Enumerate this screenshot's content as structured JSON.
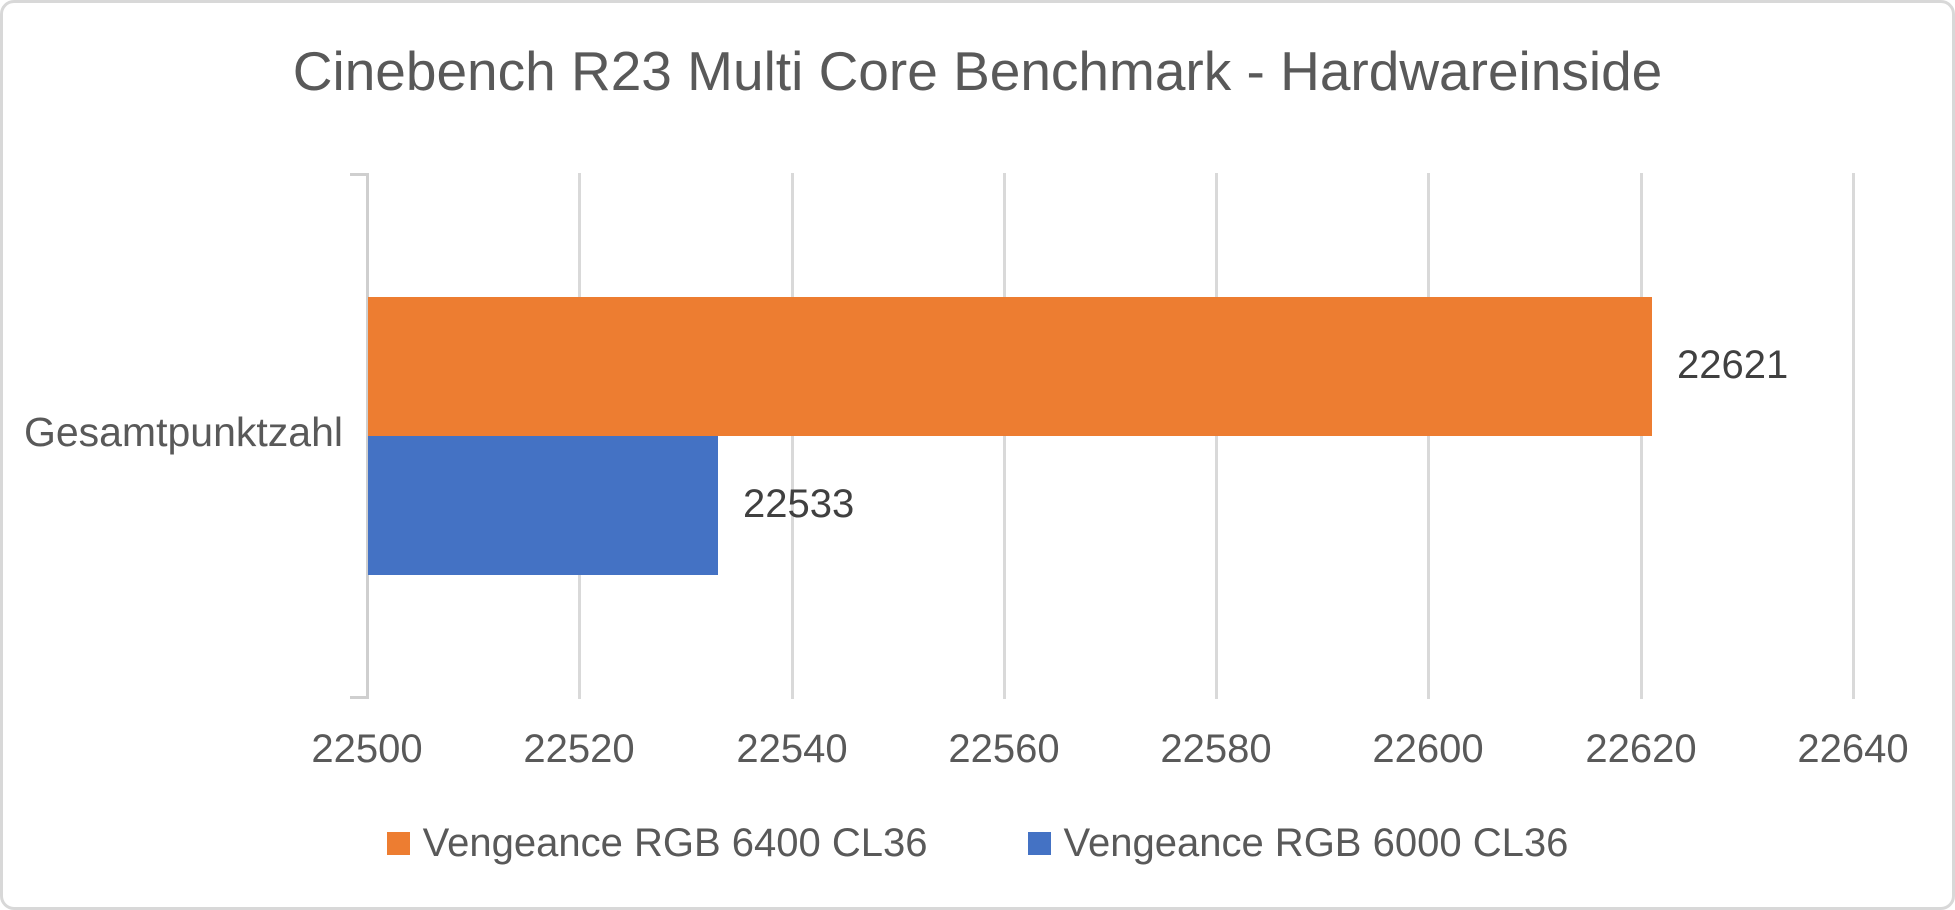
{
  "chart_data": {
    "type": "bar",
    "orientation": "horizontal",
    "title": "Cinebench R23 Multi Core Benchmark - Hardwareinside",
    "categories": [
      "Gesamtpunktzahl"
    ],
    "series": [
      {
        "name": "Vengeance RGB 6400 CL36",
        "values": [
          22621
        ],
        "color": "#ED7D31"
      },
      {
        "name": "Vengeance RGB 6000 CL36",
        "values": [
          22533
        ],
        "color": "#4472C4"
      }
    ],
    "xlim": [
      22500,
      22640
    ],
    "x_ticks": [
      22500,
      22520,
      22540,
      22560,
      22580,
      22600,
      22620,
      22640
    ],
    "x_tick_labels": [
      "22500",
      "22520",
      "22540",
      "22560",
      "22580",
      "22600",
      "22620",
      "22640"
    ],
    "grid": true,
    "gridline_color": "#D9D9D9",
    "axis_line_color": "#CFCFCF",
    "data_label_color": "#404040",
    "tick_label_color": "#595959",
    "title_color": "#595959",
    "legend_position": "bottom"
  }
}
